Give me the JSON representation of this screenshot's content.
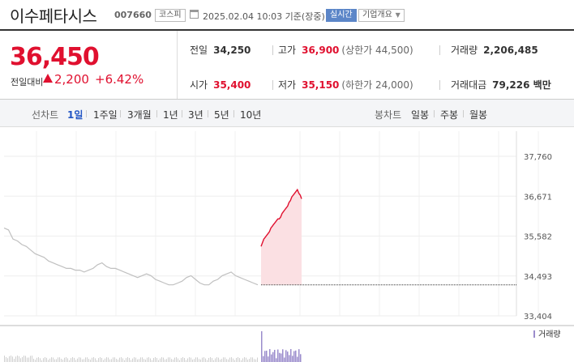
{
  "header": {
    "stock_name": "이수페타시스",
    "stock_code": "007660",
    "market": "코스피",
    "datetime": "2025.02.04 10:03 기준(장중)",
    "realtime_label": "실시간",
    "info_label": "기업개요"
  },
  "summary": {
    "price": "36,450",
    "prev_label": "전일대비",
    "change": "2,200",
    "change_pct": "+6.42%"
  },
  "stats": {
    "prev_close": {
      "label": "전일",
      "value": "34,250"
    },
    "high": {
      "label": "고가",
      "value": "36,900",
      "sub": "(상한가 44,500)"
    },
    "volume": {
      "label": "거래량",
      "value": "2,206,485"
    },
    "open": {
      "label": "시가",
      "value": "35,400"
    },
    "low": {
      "label": "저가",
      "value": "35,150",
      "sub": "(하한가 24,000)"
    },
    "amount": {
      "label": "거래대금",
      "value": "79,226 백만"
    }
  },
  "period_bar": {
    "line_label": "선차트",
    "line_periods": [
      "1일",
      "1주일",
      "3개월",
      "1년",
      "3년",
      "5년",
      "10년"
    ],
    "active_period": "1일",
    "candle_label": "봉차트",
    "candle_periods": [
      "일봉",
      "주봉",
      "월봉"
    ]
  },
  "colors": {
    "up": "#e0102f",
    "accent": "#2255c4",
    "prior_line": "#c0c0c0",
    "volume_bar": "#9b8ccc"
  },
  "chart_data": {
    "type": "line",
    "ylim": [
      33404,
      37760
    ],
    "ytick_labels": [
      "37,760",
      "36,671",
      "35,582",
      "34,493",
      "33,404"
    ],
    "yticks": [
      37760,
      36671,
      35582,
      34493,
      33404
    ],
    "reference_value": 34250,
    "volume_label": "거래량",
    "series": [
      {
        "values": [
          35800,
          35750,
          35500,
          35450,
          35350,
          35300,
          35200,
          35100,
          35050,
          35000,
          34900,
          34850,
          34800,
          34750,
          34700,
          34700,
          34650,
          34650,
          34600,
          34650,
          34700,
          34800,
          34850,
          34750,
          34700,
          34700,
          34650,
          34600,
          34550,
          34500,
          34450,
          34500,
          34550,
          34500,
          34400,
          34350,
          34300,
          34250,
          34250,
          34300,
          34350,
          34450,
          34500,
          34400,
          34300,
          34250,
          34250,
          34350,
          34400,
          34500,
          34550,
          34600,
          34500,
          34450,
          34400,
          34350,
          34300,
          34250
        ]
      },
      {
        "values": [
          35300,
          35400,
          35500,
          35550,
          35600,
          35650,
          35700,
          35800,
          35850,
          35900,
          35950,
          36000,
          36050,
          36050,
          36100,
          36200,
          36250,
          36300,
          36350,
          36400,
          36500,
          36550,
          36650,
          36700,
          36750,
          36800,
          36850,
          36750,
          36700,
          36600
        ]
      }
    ]
  }
}
